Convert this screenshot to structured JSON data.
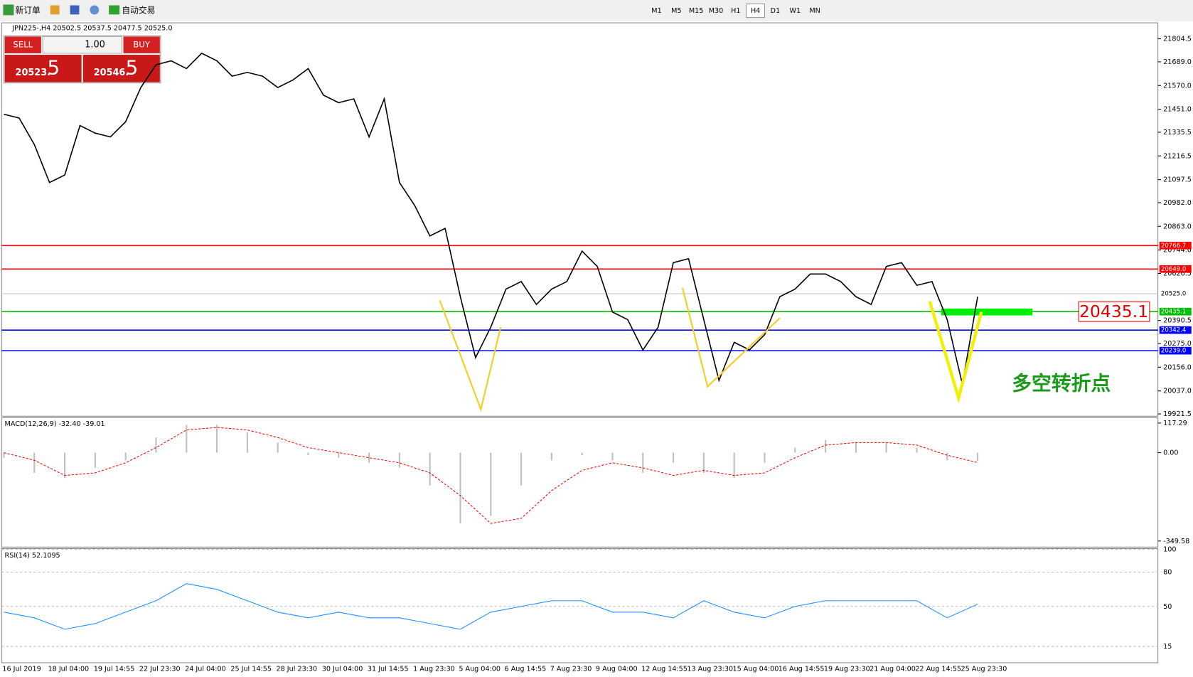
{
  "toolbar": {
    "new_order": "新订单",
    "auto_trade": "自动交易",
    "timeframes": [
      "M1",
      "M5",
      "M15",
      "M30",
      "H1",
      "H4",
      "D1",
      "W1",
      "MN"
    ]
  },
  "order_panel": {
    "sell": "SELL",
    "buy": "BUY",
    "volume": "1.00",
    "bid_main": "20523.",
    "bid_big": "5",
    "ask_main": "20546.",
    "ask_big": "5"
  },
  "chart_data": [
    {
      "type": "line",
      "title": "JPN225-,H4  20502.5 20537.5 20477.5 20525.0",
      "color": "#000000",
      "values": [
        21426,
        21407,
        21274,
        21083,
        21121,
        21369,
        21331,
        21312,
        21388,
        21560,
        21674,
        21694,
        21655,
        21732,
        21694,
        21617,
        21636,
        21617,
        21560,
        21598,
        21655,
        21522,
        21484,
        21503,
        21312,
        21503,
        21083,
        20968,
        20815,
        20853,
        20510,
        20204,
        20357,
        20548,
        20586,
        20471,
        20548,
        20586,
        20739,
        20662,
        20433,
        20395,
        20242,
        20357,
        20681,
        20701,
        20395,
        20090,
        20281,
        20243,
        20319,
        20510,
        20548,
        20624,
        20624,
        20586,
        20510,
        20471,
        20662,
        20681,
        20567,
        20586,
        20395,
        20070,
        20510
      ],
      "ylim": [
        19921.5,
        21804.5
      ],
      "yticks": [
        21804.5,
        {
          "value": 21689,
          "label": "21689.0"
        },
        {
          "value": 21570,
          "label": "21570.0"
        },
        {
          "value": 21451,
          "label": "21451.0"
        },
        21335.5,
        21216.5,
        21097.5,
        {
          "value": 20982,
          "label": "20982.0"
        },
        {
          "value": 20863,
          "label": "20863.0"
        },
        {
          "value": 20744,
          "label": "20744.0"
        },
        20626.5,
        20390.5,
        {
          "value": 20275,
          "label": "20275.0"
        },
        {
          "value": 20156,
          "label": "20156.0"
        },
        {
          "value": 20037,
          "label": "20037.0"
        },
        19921.5
      ],
      "levels": [
        {
          "value": 20766.7,
          "color": "#ff0000"
        },
        {
          "value": 20649,
          "label": "20649.0",
          "color": "#ff0000"
        },
        {
          "value": 20525,
          "label": "20525.0",
          "color": "#c0c0c0"
        },
        {
          "value": 20435.1,
          "color": "#00c000"
        },
        {
          "value": 20342.4,
          "color": "#0000ff"
        },
        {
          "value": 20239,
          "label": "20239.0",
          "color": "#0000ff"
        }
      ],
      "pivot_label": {
        "value": 20435.1,
        "label": "20435.1"
      },
      "annotation": "多空转折点",
      "xlabels": [
        "16 Jul 2019",
        "18 Jul 04:00",
        "19 Jul 14:55",
        "22 Jul 23:30",
        "24 Jul 04:00",
        "25 Jul 14:55",
        "28 Jul 23:30",
        "30 Jul 04:00",
        "31 Jul 14:55",
        "1 Aug 23:30",
        "5 Aug 04:00",
        "6 Aug 14:55",
        "7 Aug 23:30",
        "9 Aug 04:00",
        "12 Aug 14:55",
        "13 Aug 23:30",
        "15 Aug 04:00",
        "16 Aug 14:55",
        "19 Aug 23:30",
        "21 Aug 04:00",
        "22 Aug 14:55",
        "25 Aug 23:30"
      ]
    },
    {
      "type": "macd",
      "title": "MACD(12,26,9) -32.40 -39.01",
      "ylim": [
        -349.58,
        117.29
      ],
      "yticks": [
        117.29,
        {
          "value": 0,
          "label": "0.00"
        },
        -349.58
      ],
      "series": [
        {
          "name": "MACD",
          "color": "#c0c0c0",
          "values": [
            -20,
            -80,
            -100,
            -60,
            -30,
            60,
            110,
            110,
            80,
            40,
            -10,
            -20,
            -40,
            -60,
            -130,
            -280,
            -250,
            -130,
            -30,
            -10,
            -30,
            -80,
            -40,
            -80,
            -100,
            -40,
            20,
            50,
            40,
            40,
            20,
            -30,
            -32
          ]
        },
        {
          "name": "Signal",
          "color": "#ff0000",
          "values": [
            0,
            -30,
            -90,
            -80,
            -40,
            20,
            90,
            100,
            90,
            60,
            20,
            0,
            -20,
            -40,
            -80,
            -170,
            -280,
            -260,
            -150,
            -70,
            -40,
            -60,
            -90,
            -70,
            -90,
            -80,
            -20,
            30,
            40,
            40,
            30,
            -10,
            -39
          ]
        }
      ]
    },
    {
      "type": "rsi",
      "title": "RSI(14) 52.1095",
      "color": "#1e90ff",
      "ylim": [
        0,
        100
      ],
      "yticks": [
        100,
        80,
        50,
        15
      ],
      "values": [
        45,
        40,
        30,
        35,
        45,
        55,
        70,
        65,
        55,
        45,
        40,
        45,
        40,
        40,
        35,
        30,
        45,
        50,
        55,
        55,
        45,
        45,
        40,
        55,
        45,
        40,
        50,
        55,
        55,
        55,
        55,
        40,
        52
      ]
    }
  ]
}
